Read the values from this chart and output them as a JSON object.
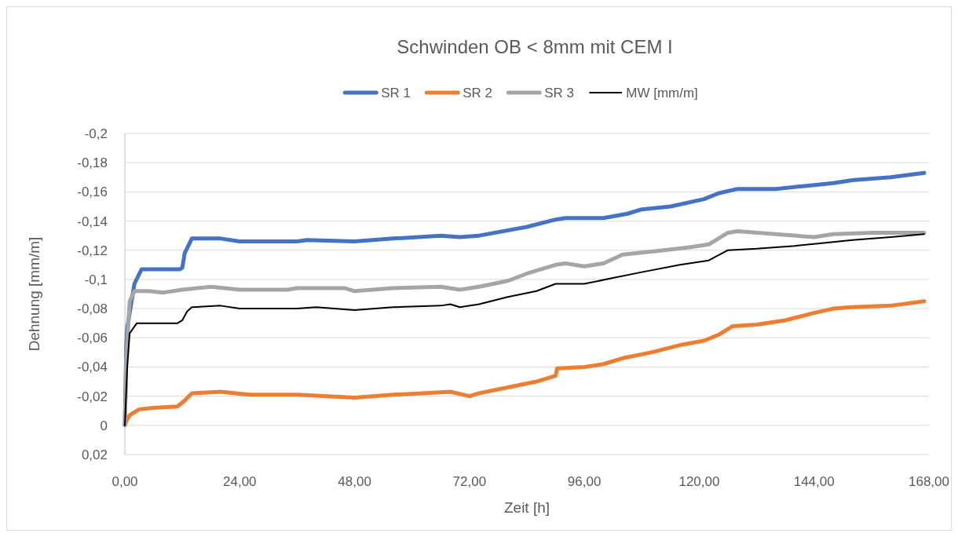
{
  "chart_data": {
    "type": "line",
    "title": "Schwinden OB < 8mm mit CEM I",
    "xlabel": "Zeit [h]",
    "ylabel": "Dehnung [mm/m]",
    "legend": "top",
    "grid": "y",
    "marker": "none",
    "line_style": "solid",
    "xlim": [
      0,
      168
    ],
    "xticks": [
      {
        "value": 0,
        "label": "0,00"
      },
      {
        "value": 24,
        "label": "24,00"
      },
      {
        "value": 48,
        "label": "48,00"
      },
      {
        "value": 72,
        "label": "72,00"
      },
      {
        "value": 96,
        "label": "96,00"
      },
      {
        "value": 120,
        "label": "120,00"
      },
      {
        "value": 144,
        "label": "144,00"
      },
      {
        "value": 168,
        "label": "168,00"
      }
    ],
    "ylim": [
      0.02,
      -0.2
    ],
    "yticks": [
      {
        "value": -0.2,
        "label": "-0,2"
      },
      {
        "value": -0.18,
        "label": "-0,18"
      },
      {
        "value": -0.16,
        "label": "-0,16"
      },
      {
        "value": -0.14,
        "label": "-0,14"
      },
      {
        "value": -0.12,
        "label": "-0,12"
      },
      {
        "value": -0.1,
        "label": "-0,1"
      },
      {
        "value": -0.08,
        "label": "-0,08"
      },
      {
        "value": -0.06,
        "label": "-0,06"
      },
      {
        "value": -0.04,
        "label": "-0,04"
      },
      {
        "value": -0.02,
        "label": "-0,02"
      },
      {
        "value": 0,
        "label": "0"
      },
      {
        "value": 0.02,
        "label": "0,02"
      }
    ],
    "series": [
      {
        "name": "SR 1",
        "color": "#4472c4",
        "x": [
          0,
          0.3,
          0.5,
          2,
          3.5,
          11.5,
          12,
          12.5,
          14,
          20,
          24,
          36,
          38,
          48,
          56,
          66,
          70,
          74,
          84,
          90,
          92,
          100,
          105,
          108,
          114,
          121,
          124,
          128,
          136,
          142,
          148,
          152,
          160,
          167
        ],
        "values": [
          0,
          -0.055,
          -0.067,
          -0.097,
          -0.107,
          -0.107,
          -0.108,
          -0.118,
          -0.128,
          -0.128,
          -0.126,
          -0.126,
          -0.127,
          -0.126,
          -0.128,
          -0.13,
          -0.129,
          -0.13,
          -0.136,
          -0.141,
          -0.142,
          -0.142,
          -0.145,
          -0.148,
          -0.15,
          -0.155,
          -0.159,
          -0.162,
          -0.162,
          -0.164,
          -0.166,
          -0.168,
          -0.17,
          -0.173
        ]
      },
      {
        "name": "SR 2",
        "color": "#ed7d31",
        "x": [
          0,
          0.3,
          1,
          3,
          6,
          11,
          12.5,
          14,
          20,
          26,
          36,
          48,
          56,
          62,
          68,
          72,
          74,
          80,
          86,
          90,
          90.3,
          96,
          100,
          104,
          110,
          116,
          121,
          124,
          127,
          132,
          138,
          144,
          148,
          152,
          160,
          167
        ],
        "values": [
          0,
          -0.003,
          -0.007,
          -0.011,
          -0.012,
          -0.013,
          -0.017,
          -0.022,
          -0.023,
          -0.021,
          -0.021,
          -0.019,
          -0.021,
          -0.022,
          -0.023,
          -0.02,
          -0.022,
          -0.026,
          -0.03,
          -0.034,
          -0.039,
          -0.04,
          -0.042,
          -0.046,
          -0.05,
          -0.055,
          -0.058,
          -0.062,
          -0.068,
          -0.069,
          -0.072,
          -0.077,
          -0.08,
          -0.081,
          -0.082,
          -0.085
        ]
      },
      {
        "name": "SR 3",
        "color": "#a5a5a5",
        "x": [
          0,
          0.3,
          1,
          2,
          5,
          8,
          12,
          18,
          24,
          34,
          36,
          46,
          48,
          56,
          66,
          70,
          74,
          80,
          84,
          90,
          92,
          96,
          100,
          104,
          110,
          118,
          122,
          126,
          128,
          136,
          144,
          148,
          156,
          167
        ],
        "values": [
          0,
          -0.045,
          -0.085,
          -0.092,
          -0.092,
          -0.091,
          -0.093,
          -0.095,
          -0.093,
          -0.093,
          -0.094,
          -0.094,
          -0.092,
          -0.094,
          -0.095,
          -0.093,
          -0.095,
          -0.099,
          -0.104,
          -0.11,
          -0.111,
          -0.109,
          -0.111,
          -0.117,
          -0.119,
          -0.122,
          -0.124,
          -0.132,
          -0.133,
          -0.131,
          -0.129,
          -0.131,
          -0.132,
          -0.132
        ]
      },
      {
        "name": "MW [mm/m]",
        "color": "#000000",
        "x": [
          0,
          0.5,
          1,
          2.5,
          11,
          12,
          13,
          14,
          20,
          24,
          36,
          40,
          48,
          56,
          66,
          68,
          70,
          74,
          80,
          86,
          90,
          96,
          102,
          108,
          116,
          122,
          126,
          132,
          140,
          146,
          152,
          160,
          167
        ],
        "values": [
          0,
          -0.04,
          -0.063,
          -0.07,
          -0.07,
          -0.072,
          -0.078,
          -0.081,
          -0.082,
          -0.08,
          -0.08,
          -0.081,
          -0.079,
          -0.081,
          -0.082,
          -0.083,
          -0.081,
          -0.083,
          -0.088,
          -0.092,
          -0.097,
          -0.097,
          -0.101,
          -0.105,
          -0.11,
          -0.113,
          -0.12,
          -0.121,
          -0.123,
          -0.125,
          -0.127,
          -0.129,
          -0.131
        ]
      }
    ]
  }
}
